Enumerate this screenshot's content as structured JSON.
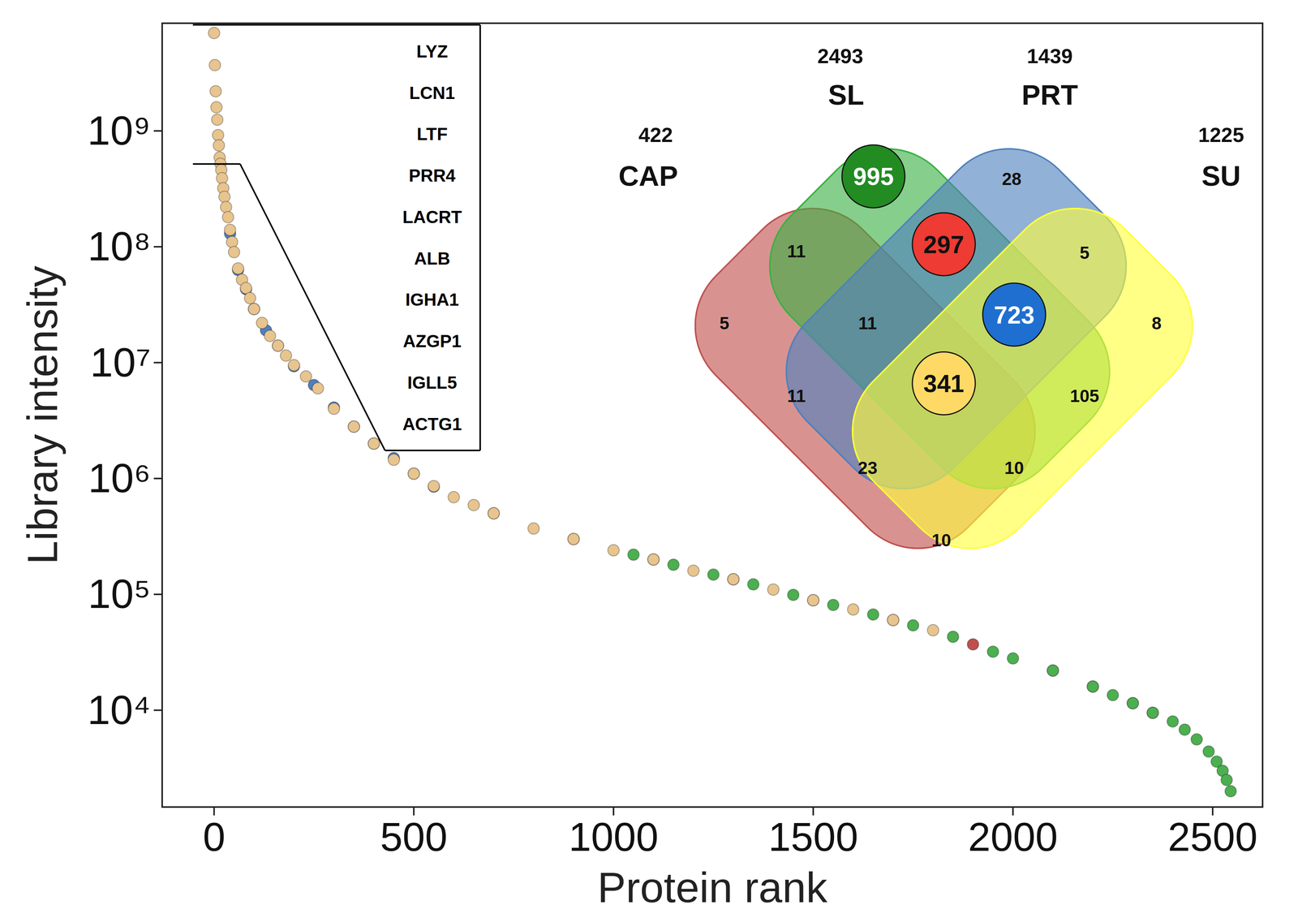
{
  "chart_data": {
    "type": "scatter",
    "xlabel": "Protein rank",
    "ylabel": "Library intensity",
    "xlim": [
      -130,
      2625
    ],
    "ylim": [
      1460,
      8500000000
    ],
    "xticks": [
      0,
      500,
      1000,
      1500,
      2000,
      2500
    ],
    "yticks": [
      {
        "value": 10000,
        "label": "10⁴"
      },
      {
        "value": 100000,
        "label": "10⁵"
      },
      {
        "value": 1000000,
        "label": "10⁶"
      },
      {
        "value": 10000000,
        "label": "10⁷"
      },
      {
        "value": 100000000,
        "label": "10⁸"
      },
      {
        "value": 1000000000,
        "label": "10⁹"
      }
    ],
    "log": "y",
    "grid": false,
    "series": [
      {
        "color": "#c0504d",
        "marker": "circle",
        "x": [
          700,
          900,
          1100,
          1300,
          1500,
          1700,
          1900,
          2100,
          2200,
          2300,
          2350
        ],
        "values": [
          500000,
          300000,
          200000,
          135000,
          89000,
          60000,
          37000,
          22000,
          16000,
          11500,
          9500
        ]
      },
      {
        "color": "#4f7fc0",
        "marker": "circle",
        "x": [
          40,
          60,
          80,
          100,
          130,
          160,
          200,
          250,
          300,
          350,
          400,
          450,
          500,
          550
        ],
        "values": [
          130000000,
          63000000,
          43000000,
          29000000,
          19000000,
          14000000,
          9300000,
          6400000,
          4100000,
          2800000,
          2000000,
          1500000,
          1100000,
          850000
        ]
      },
      {
        "color": "#e8c48e",
        "marker": "circle",
        "x": [
          0,
          2,
          4,
          6,
          8,
          10,
          12,
          14,
          16,
          18,
          20,
          23,
          26,
          30,
          35,
          40,
          45,
          50,
          60,
          70,
          80,
          90,
          100,
          120,
          140,
          160,
          180,
          200,
          230,
          260,
          300,
          350,
          400,
          450,
          500,
          550,
          600,
          650,
          700,
          800,
          900,
          1000,
          1100,
          1200,
          1300,
          1400,
          1500,
          1600,
          1700,
          1800
        ],
        "values": [
          7000000000,
          3700000000,
          2200000000,
          1600000000,
          1250000000,
          920000000,
          750000000,
          590000000,
          520000000,
          460000000,
          390000000,
          320000000,
          270000000,
          220000000,
          180000000,
          140000000,
          110000000,
          90000000,
          65000000,
          52000000,
          44000000,
          36000000,
          29000000,
          22000000,
          17000000,
          14000000,
          11500000,
          9500000,
          7600000,
          6000000,
          4000000,
          2800000,
          2000000,
          1450000,
          1100000,
          860000,
          690000,
          590000,
          500000,
          370000,
          300000,
          240000,
          200000,
          160000,
          135000,
          110000,
          89000,
          74000,
          60000,
          49000
        ]
      },
      {
        "color": "#4caf50",
        "marker": "circle",
        "x": [
          1050,
          1150,
          1250,
          1350,
          1450,
          1550,
          1650,
          1750,
          1850,
          1950,
          2000,
          2100,
          2200,
          2250,
          2300,
          2350,
          2400,
          2430,
          2460,
          2490,
          2510,
          2525,
          2535,
          2545
        ],
        "values": [
          220000,
          180000,
          148000,
          122000,
          99000,
          81000,
          67000,
          54000,
          43000,
          32000,
          28000,
          22000,
          16000,
          13500,
          11500,
          9500,
          8000,
          6800,
          5600,
          4400,
          3600,
          3000,
          2500,
          2000
        ]
      }
    ],
    "annotations": [
      "LYZ",
      "LCN1",
      "LTF",
      "PRR4",
      "LACRT",
      "ALB",
      "IGHA1",
      "AZGP1",
      "IGLL5",
      "ACTG1"
    ],
    "venn": {
      "sets": [
        {
          "label": "CAP",
          "count": 422,
          "color": "#c0504d"
        },
        {
          "label": "SL",
          "count": 2493,
          "color": "#3cb043"
        },
        {
          "label": "PRT",
          "count": 1439,
          "color": "#4f81bd"
        },
        {
          "label": "SU",
          "count": 1225,
          "color": "#ffff3c"
        }
      ],
      "regions": [
        {
          "value": 995,
          "color": "#228b22"
        },
        {
          "value": 28
        },
        {
          "value": 11
        },
        {
          "value": 297,
          "color": "#ee3b33"
        },
        {
          "value": 5
        },
        {
          "value": 5
        },
        {
          "value": 11
        },
        {
          "value": 723,
          "color": "#1f6fd0"
        },
        {
          "value": 8
        },
        {
          "value": 11
        },
        {
          "value": 341,
          "color": "#ffd966"
        },
        {
          "value": 105
        },
        {
          "value": 23
        },
        {
          "value": 10
        },
        {
          "value": 10
        }
      ]
    }
  }
}
